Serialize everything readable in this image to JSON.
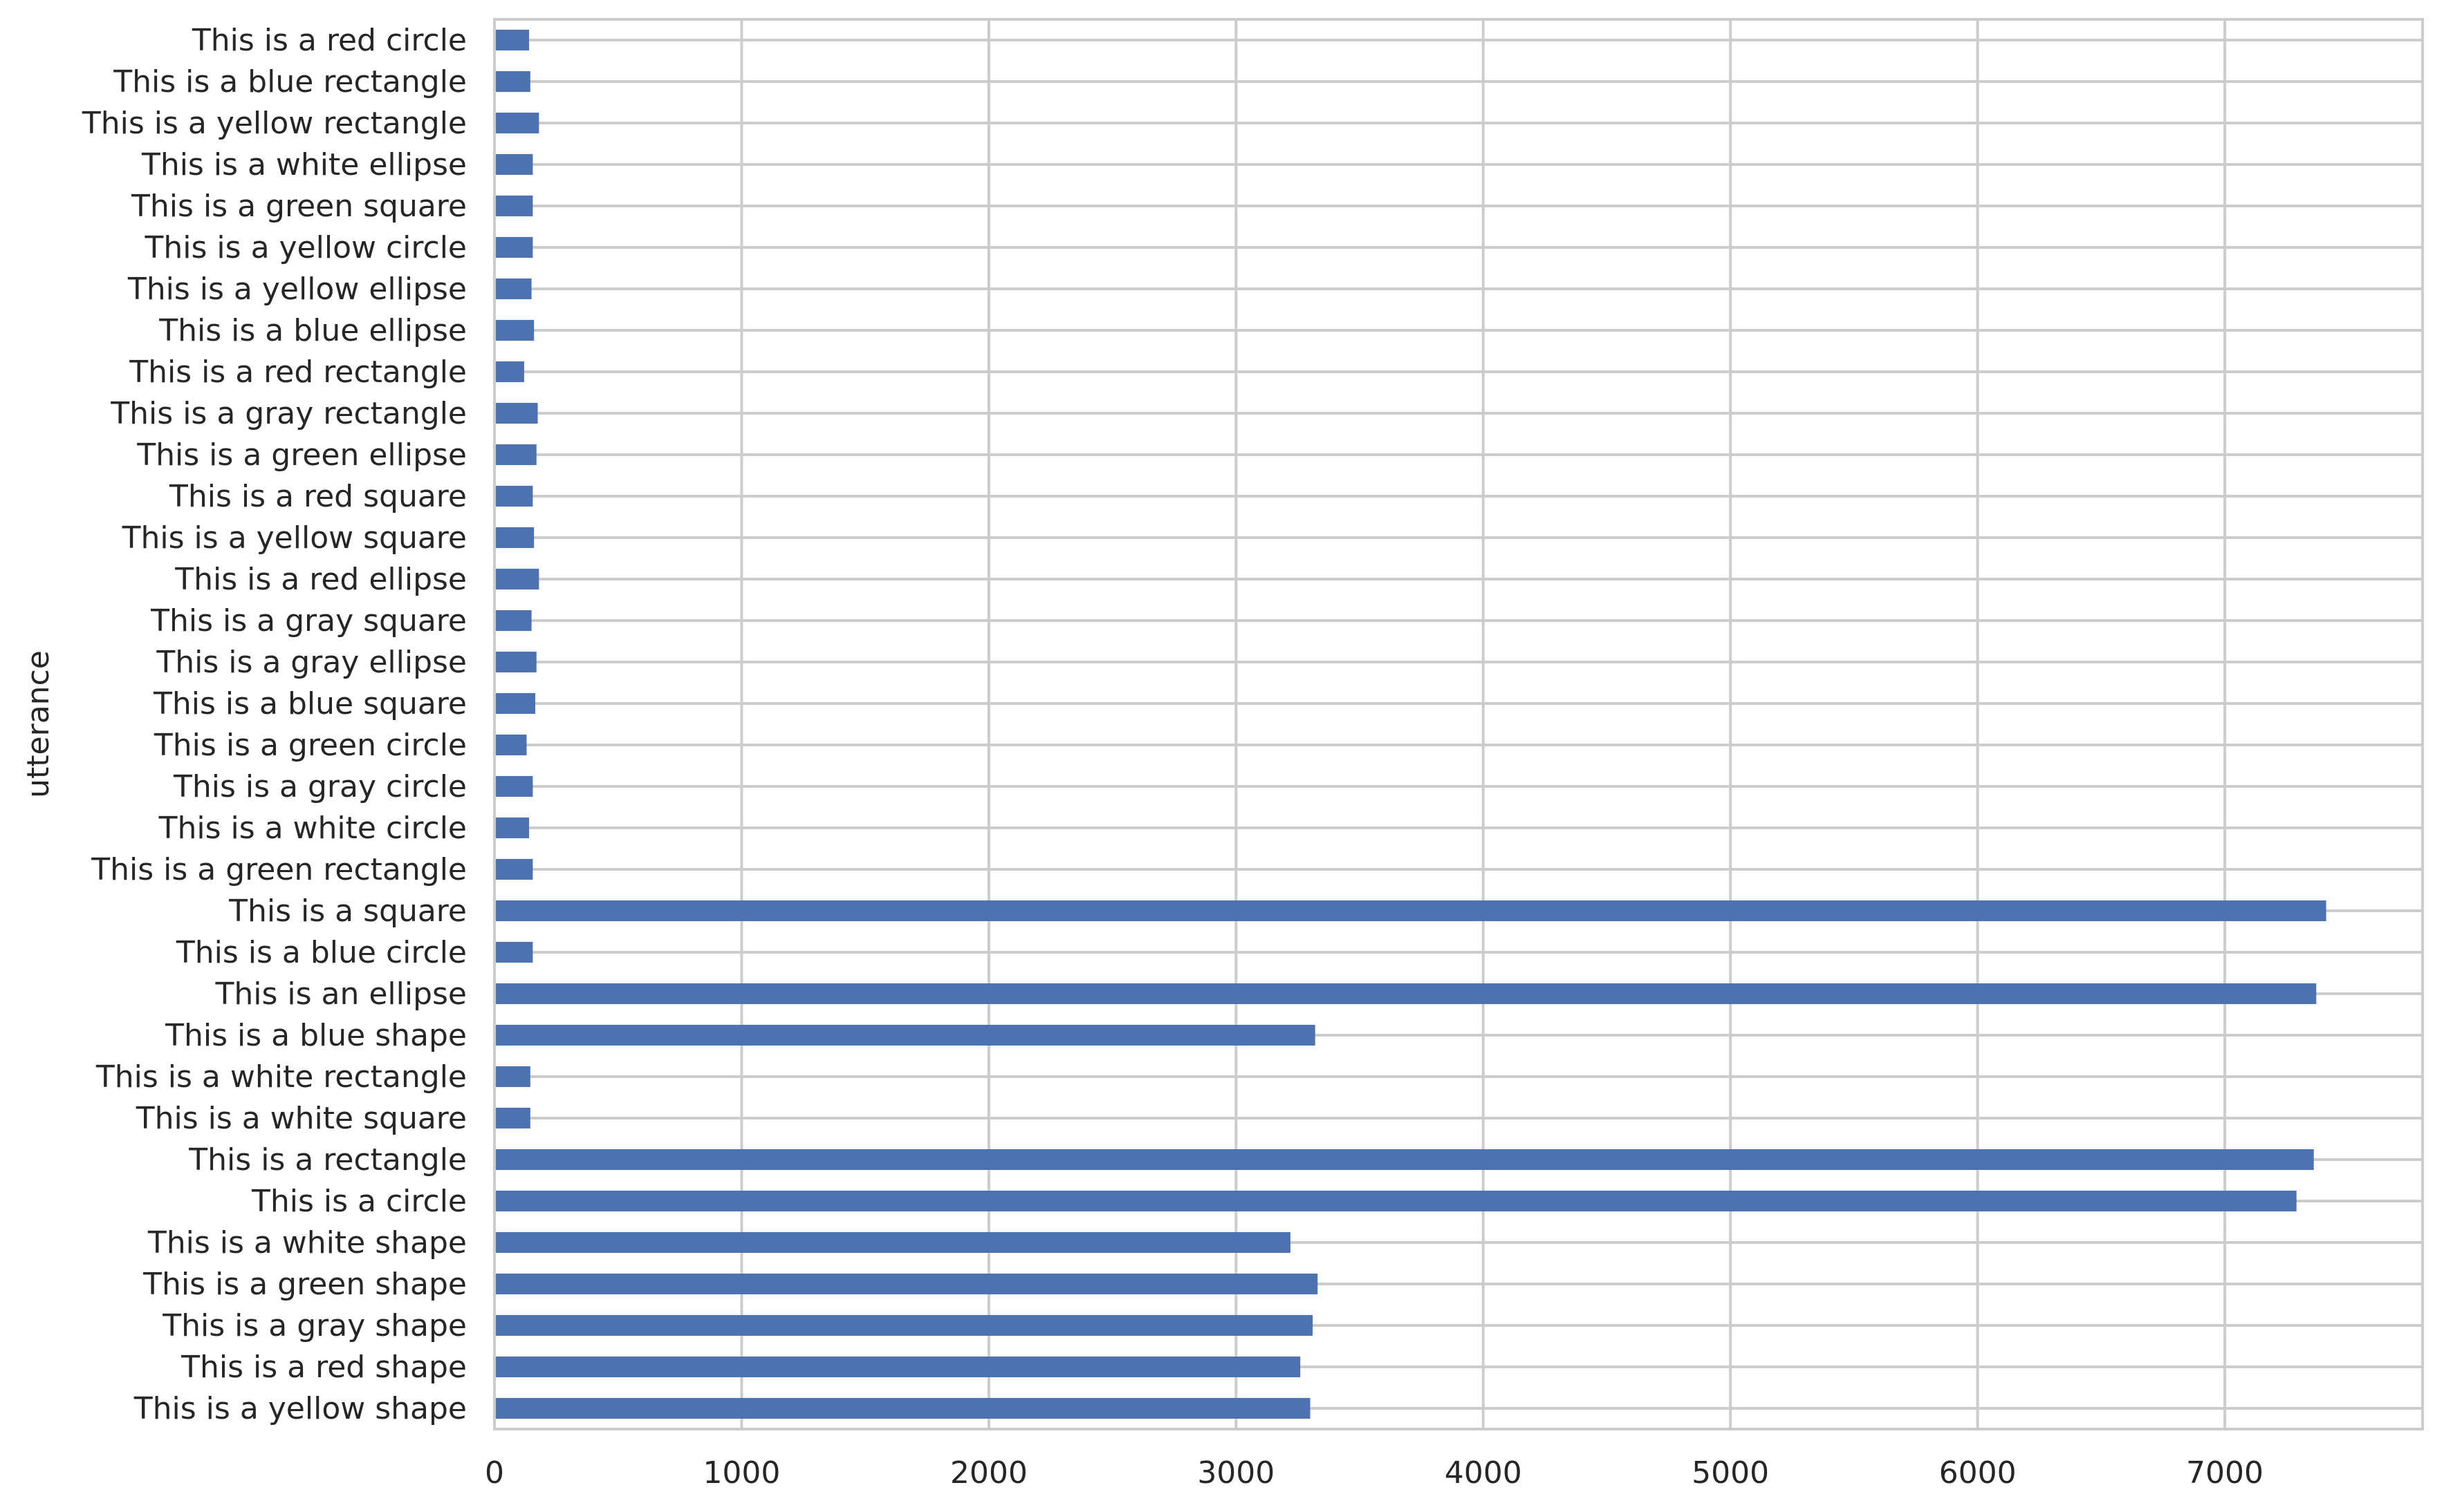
{
  "chart_data": {
    "type": "bar",
    "orientation": "horizontal",
    "title": "",
    "xlabel": "",
    "ylabel": "utterance",
    "xlim": [
      0,
      7800
    ],
    "xticks": [
      0,
      1000,
      2000,
      3000,
      4000,
      5000,
      6000,
      7000
    ],
    "grid": true,
    "legend": "none",
    "bar_color": "#4c72b0",
    "categories": [
      "This is a red circle",
      "This is a blue rectangle",
      "This is a yellow rectangle",
      "This is a white ellipse",
      "This is a green square",
      "This is a yellow circle",
      "This is a yellow ellipse",
      "This is a blue ellipse",
      "This is a red rectangle",
      "This is a gray rectangle",
      "This is a green ellipse",
      "This is a red square",
      "This is a yellow square",
      "This is a red ellipse",
      "This is a gray square",
      "This is a gray ellipse",
      "This is a blue square",
      "This is a green circle",
      "This is a gray circle",
      "This is a white circle",
      "This is a green rectangle",
      "This is a square",
      "This is a blue circle",
      "This is an ellipse",
      "This is a blue shape",
      "This is a white rectangle",
      "This is a white square",
      "This is a rectangle",
      "This is a circle",
      "This is a white shape",
      "This is a green shape",
      "This is a gray shape",
      "This is a red shape",
      "This is a yellow shape"
    ],
    "values": [
      140,
      145,
      180,
      155,
      155,
      155,
      150,
      160,
      120,
      175,
      170,
      155,
      160,
      180,
      150,
      170,
      165,
      130,
      155,
      140,
      155,
      7410,
      155,
      7370,
      3320,
      145,
      145,
      7360,
      7290,
      3220,
      3330,
      3310,
      3260,
      3300
    ]
  }
}
